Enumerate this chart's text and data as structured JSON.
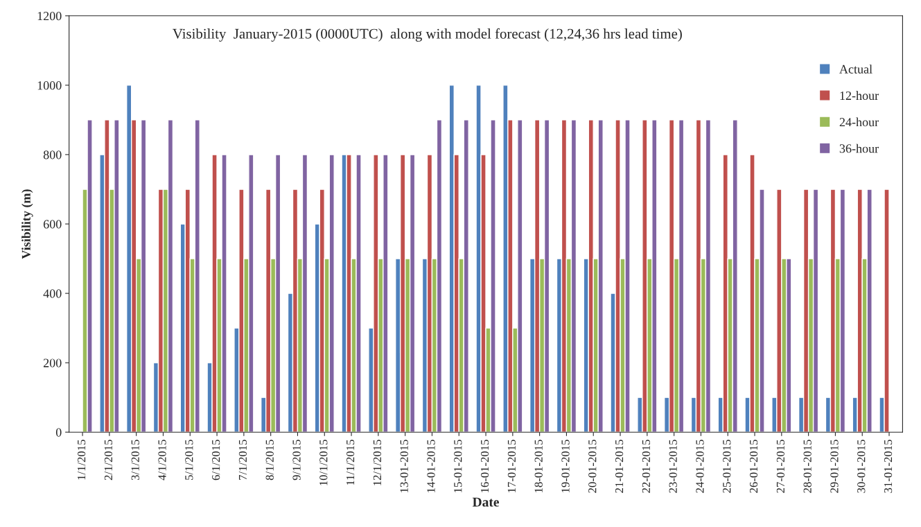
{
  "chart_data": {
    "type": "bar",
    "title": "Visibility  January-2015 (0000UTC)  along with model forecast (12,24,36 hrs lead time)",
    "xlabel": "Date",
    "ylabel": "Visibility (m)",
    "categories": [
      "1/1/2015",
      "2/1/2015",
      "3/1/2015",
      "4/1/2015",
      "5/1/2015",
      "6/1/2015",
      "7/1/2015",
      "8/1/2015",
      "9/1/2015",
      "10/1/2015",
      "11/1/2015",
      "12/1/2015",
      "13-01-2015",
      "14-01-2015",
      "15-01-2015",
      "16-01-2015",
      "17-01-2015",
      "18-01-2015",
      "19-01-2015",
      "20-01-2015",
      "21-01-2015",
      "22-01-2015",
      "23-01-2015",
      "24-01-2015",
      "25-01-2015",
      "26-01-2015",
      "27-01-2015",
      "28-01-2015",
      "29-01-2015",
      "30-01-2015",
      "31-01-2015"
    ],
    "series": [
      {
        "name": "Actual",
        "color": "#4f81bd",
        "values": [
          null,
          800,
          1000,
          200,
          600,
          200,
          300,
          100,
          400,
          600,
          800,
          300,
          500,
          500,
          1000,
          1000,
          1000,
          500,
          500,
          500,
          400,
          100,
          100,
          100,
          100,
          100,
          100,
          100,
          100,
          100,
          100
        ]
      },
      {
        "name": "12-hour",
        "color": "#c0504d",
        "values": [
          null,
          900,
          900,
          700,
          700,
          800,
          700,
          700,
          700,
          700,
          800,
          800,
          800,
          800,
          800,
          800,
          900,
          900,
          900,
          900,
          900,
          900,
          900,
          900,
          800,
          800,
          700,
          700,
          700,
          700,
          700
        ]
      },
      {
        "name": "24-hour",
        "color": "#9bbb59",
        "values": [
          700,
          700,
          500,
          700,
          500,
          500,
          500,
          500,
          500,
          500,
          500,
          500,
          500,
          500,
          500,
          300,
          300,
          500,
          500,
          500,
          500,
          500,
          500,
          500,
          500,
          500,
          500,
          500,
          500,
          500,
          null
        ]
      },
      {
        "name": "36-hour",
        "color": "#8064a2",
        "values": [
          900,
          900,
          900,
          900,
          900,
          800,
          800,
          800,
          800,
          800,
          800,
          800,
          800,
          900,
          900,
          900,
          900,
          900,
          900,
          900,
          900,
          900,
          900,
          900,
          900,
          700,
          500,
          700,
          700,
          700,
          null
        ]
      }
    ],
    "ylim": [
      0,
      1200
    ],
    "yticks": [
      0,
      200,
      400,
      600,
      800,
      1000,
      1200
    ],
    "legend": "top right",
    "grid": false
  }
}
